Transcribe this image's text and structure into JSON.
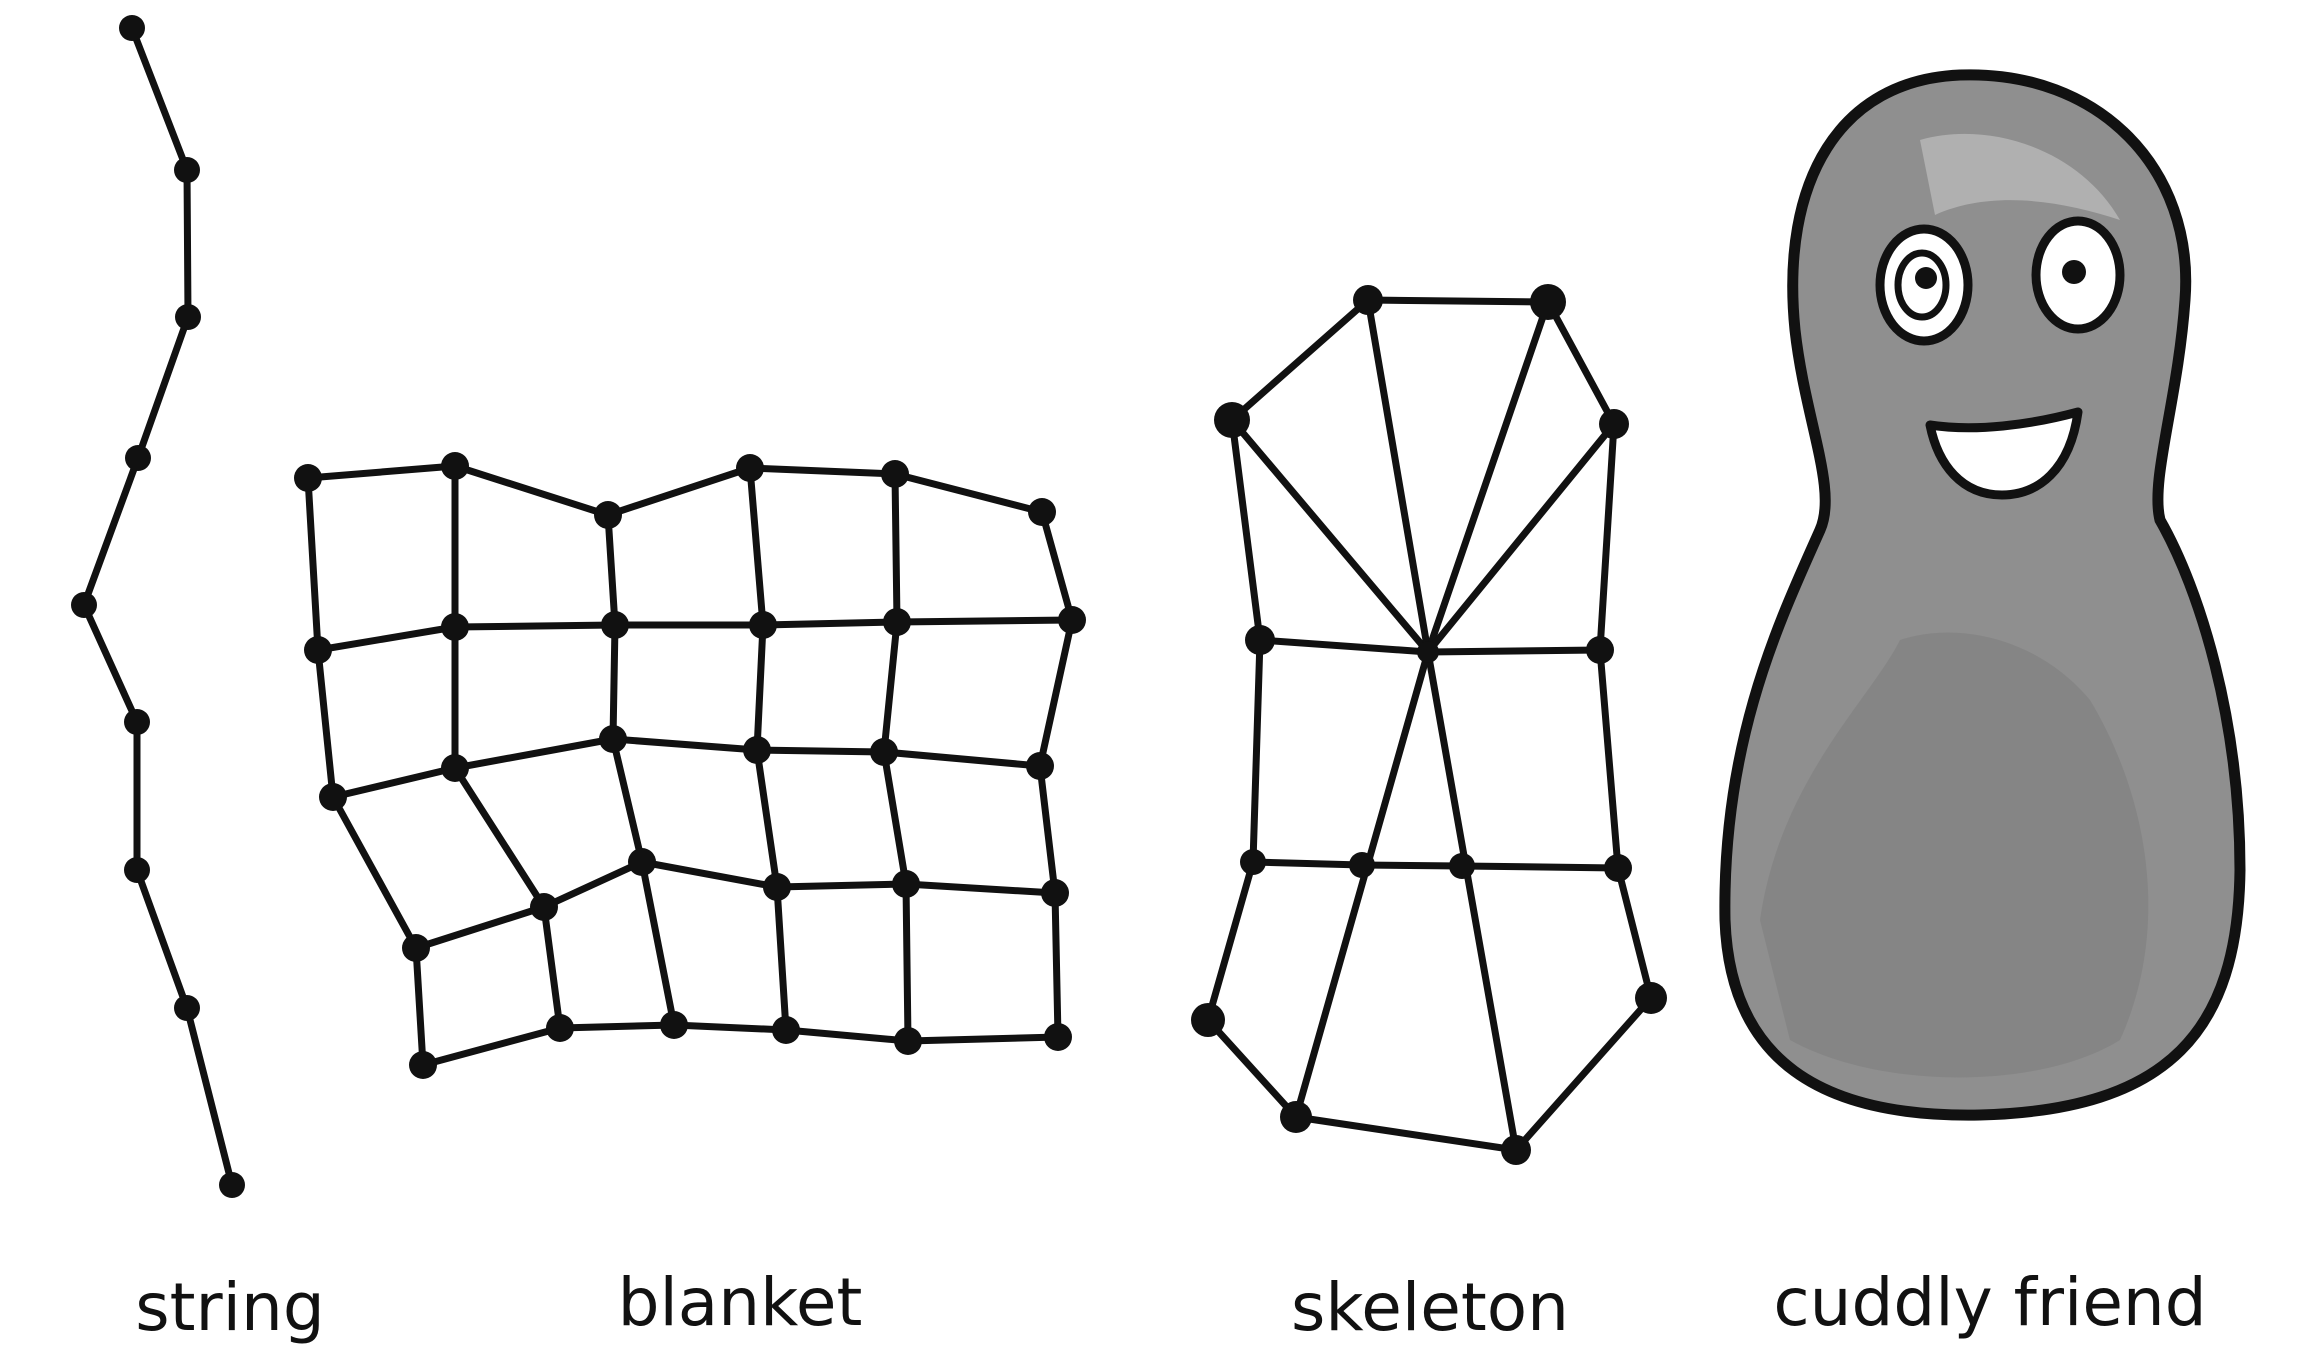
{
  "figures": [
    {
      "name": "string",
      "caption": "string"
    },
    {
      "name": "blanket",
      "caption": "blanket"
    },
    {
      "name": "skeleton",
      "caption": "skeleton"
    },
    {
      "name": "cuddly-friend",
      "caption": "cuddly friend"
    }
  ],
  "colors": {
    "ink": "#111111",
    "background": "#ffffff",
    "body_fill": "#8f8f8f",
    "body_highlight": "#b4b4b4",
    "body_shadow": "#7a7a7a"
  }
}
